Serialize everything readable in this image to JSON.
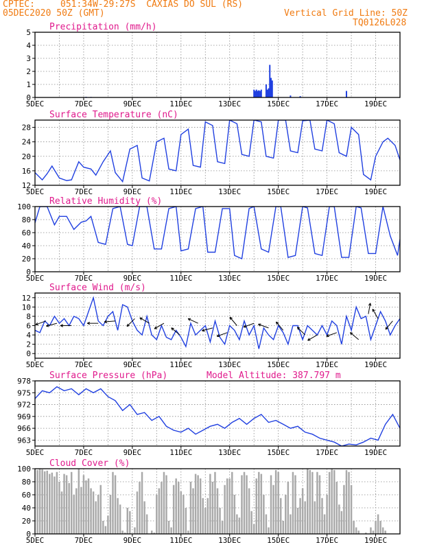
{
  "header": {
    "source": "CPTEC:",
    "location": "051:34W-29:27S  CAXIAS DO SUL (RS)",
    "run": "05DEC2020 50Z (GMT)",
    "grid_note": "Vertical Grid Line: 50Z",
    "model_id": "TQ0126L028"
  },
  "colors": {
    "header_text": "#f07a10",
    "panel_title": "#e0198c",
    "series_line": "#1f3fe0",
    "cloud_bars": "#a9a9a9",
    "wind_arrows": "#000000",
    "grid": "#888888"
  },
  "chart_data": [
    {
      "id": "precip",
      "type": "bar",
      "title": "Precipitation (mm/h)",
      "ylim": [
        0,
        5
      ],
      "yticks": [
        0,
        1,
        2,
        3,
        4,
        5
      ],
      "xticks": [
        "5DEC",
        "7DEC",
        "9DEC",
        "11DEC",
        "13DEC",
        "15DEC",
        "17DEC",
        "19DEC"
      ],
      "x_days": [
        0,
        15
      ],
      "points": [
        {
          "day": 2.1,
          "value": 0.05
        },
        {
          "day": 2.3,
          "value": 0.04
        },
        {
          "day": 4.2,
          "value": 0.03
        },
        {
          "day": 9.0,
          "value": 0.6
        },
        {
          "day": 9.05,
          "value": 0.5
        },
        {
          "day": 9.1,
          "value": 0.6
        },
        {
          "day": 9.15,
          "value": 0.5
        },
        {
          "day": 9.2,
          "value": 0.55
        },
        {
          "day": 9.25,
          "value": 0.5
        },
        {
          "day": 9.3,
          "value": 0.6
        },
        {
          "day": 9.5,
          "value": 1.0
        },
        {
          "day": 9.55,
          "value": 0.6
        },
        {
          "day": 9.6,
          "value": 0.7
        },
        {
          "day": 9.65,
          "value": 2.5
        },
        {
          "day": 9.7,
          "value": 1.5
        },
        {
          "day": 9.75,
          "value": 1.3
        },
        {
          "day": 10.5,
          "value": 0.15
        },
        {
          "day": 10.9,
          "value": 0.1
        },
        {
          "day": 12.8,
          "value": 0.5
        }
      ]
    },
    {
      "id": "temp",
      "type": "line",
      "title": "Surface Temperature (nC)",
      "ylim": [
        12,
        30
      ],
      "yticks": [
        12,
        16,
        20,
        24,
        28
      ],
      "xticks": [
        "5DEC",
        "7DEC",
        "9DEC",
        "11DEC",
        "13DEC",
        "15DEC",
        "17DEC",
        "19DEC"
      ],
      "x_days": [
        0,
        15
      ],
      "days": [
        0,
        0.3,
        0.5,
        0.7,
        1.0,
        1.3,
        1.5,
        1.8,
        2.0,
        2.3,
        2.5,
        2.8,
        3.1,
        3.3,
        3.6,
        3.9,
        4.2,
        4.4,
        4.7,
        5.0,
        5.3,
        5.5,
        5.8,
        6.0,
        6.3,
        6.5,
        6.8,
        7.0,
        7.3,
        7.5,
        7.8,
        8.0,
        8.3,
        8.5,
        8.8,
        9.0,
        9.3,
        9.5,
        9.8,
        10.0,
        10.3,
        10.5,
        10.8,
        11.0,
        11.3,
        11.5,
        11.8,
        12.0,
        12.3,
        12.5,
        12.8,
        13.0,
        13.3,
        13.5,
        13.8,
        14.0,
        14.3,
        14.5,
        14.8,
        15.0
      ],
      "values": [
        15.5,
        13.5,
        15.2,
        17.3,
        14.0,
        13.3,
        13.5,
        18.5,
        17.0,
        16.5,
        14.8,
        18.5,
        21.5,
        15.5,
        13.0,
        22.0,
        23.0,
        14.0,
        13.2,
        24.0,
        25.0,
        16.5,
        16.0,
        26.0,
        27.5,
        17.5,
        17.0,
        29.5,
        28.5,
        18.5,
        18.0,
        30.0,
        29.0,
        20.5,
        20.0,
        30.0,
        29.5,
        20.0,
        19.5,
        30.0,
        30.0,
        21.5,
        21.0,
        29.8,
        30.0,
        22.0,
        21.5,
        30.0,
        29.0,
        21.0,
        20.0,
        28.0,
        26.0,
        15.0,
        13.5,
        20.0,
        24.0,
        25.0,
        23.0,
        19.0
      ]
    },
    {
      "id": "rh",
      "type": "line",
      "title": "Relative Humidity (%)",
      "ylim": [
        0,
        100
      ],
      "yticks": [
        0,
        20,
        40,
        60,
        80,
        100
      ],
      "xticks": [
        "5DEC",
        "7DEC",
        "9DEC",
        "11DEC",
        "13DEC",
        "15DEC",
        "17DEC",
        "19DEC"
      ],
      "x_days": [
        0,
        15
      ],
      "days": [
        0,
        0.2,
        0.5,
        0.8,
        1.0,
        1.3,
        1.6,
        1.9,
        2.1,
        2.3,
        2.6,
        2.9,
        3.2,
        3.5,
        3.8,
        4.0,
        4.3,
        4.6,
        4.9,
        5.2,
        5.5,
        5.8,
        6.0,
        6.3,
        6.6,
        6.9,
        7.1,
        7.4,
        7.7,
        8.0,
        8.2,
        8.5,
        8.8,
        9.0,
        9.3,
        9.6,
        9.9,
        10.1,
        10.4,
        10.7,
        11.0,
        11.2,
        11.5,
        11.8,
        12.1,
        12.3,
        12.6,
        12.9,
        13.2,
        13.4,
        13.7,
        14.0,
        14.3,
        14.6,
        14.9,
        15.0
      ],
      "values": [
        75,
        100,
        100,
        72,
        85,
        85,
        65,
        76,
        78,
        85,
        45,
        42,
        97,
        100,
        42,
        40,
        100,
        100,
        35,
        35,
        97,
        100,
        32,
        35,
        97,
        100,
        30,
        30,
        97,
        97,
        25,
        20,
        97,
        100,
        35,
        30,
        100,
        100,
        22,
        25,
        100,
        98,
        28,
        25,
        100,
        100,
        22,
        22,
        100,
        98,
        28,
        28,
        100,
        55,
        25,
        50
      ]
    },
    {
      "id": "wind",
      "type": "line",
      "title": "Surface Wind (m/s)",
      "ylim": [
        -1,
        13
      ],
      "yticks": [
        0,
        2,
        4,
        6,
        8,
        10,
        12
      ],
      "xticks": [
        "5DEC",
        "7DEC",
        "9DEC",
        "11DEC",
        "13DEC",
        "15DEC",
        "17DEC",
        "19DEC"
      ],
      "x_days": [
        0,
        15
      ],
      "days": [
        0,
        0.2,
        0.4,
        0.6,
        0.8,
        1.0,
        1.2,
        1.4,
        1.6,
        1.8,
        2.0,
        2.2,
        2.4,
        2.6,
        2.8,
        3.0,
        3.2,
        3.4,
        3.6,
        3.8,
        4.0,
        4.2,
        4.4,
        4.6,
        4.8,
        5.0,
        5.2,
        5.4,
        5.6,
        5.8,
        6.0,
        6.2,
        6.4,
        6.6,
        6.8,
        7.0,
        7.2,
        7.4,
        7.6,
        7.8,
        8.0,
        8.2,
        8.4,
        8.6,
        8.8,
        9.0,
        9.2,
        9.4,
        9.6,
        9.8,
        10.0,
        10.2,
        10.4,
        10.6,
        10.8,
        11.0,
        11.2,
        11.4,
        11.6,
        11.8,
        12.0,
        12.2,
        12.4,
        12.6,
        12.8,
        13.0,
        13.2,
        13.4,
        13.6,
        13.8,
        14.0,
        14.2,
        14.4,
        14.6,
        14.8,
        15.0
      ],
      "values": [
        5,
        4.5,
        7,
        6,
        8,
        6.5,
        7.5,
        6,
        8,
        7.5,
        6,
        9,
        12,
        7,
        6,
        8,
        9,
        5,
        10.5,
        10,
        7,
        5,
        4,
        8,
        4,
        3,
        6,
        3.5,
        3,
        5,
        3.5,
        1.5,
        6.5,
        4,
        5,
        6,
        2.5,
        7,
        3.5,
        2,
        6,
        5,
        3,
        7,
        4,
        6,
        1,
        5.5,
        4,
        3,
        6,
        4.5,
        2,
        6,
        6,
        3,
        6,
        5,
        4,
        6,
        4,
        7,
        6,
        2,
        8,
        5,
        10,
        7.5,
        8,
        3,
        6,
        9,
        7,
        4,
        6,
        7.5
      ]
    },
    {
      "id": "pressure",
      "type": "line",
      "title": "Surface Pressure (hPa)",
      "annotation": "Model Altitude: 387.797 m",
      "ylim": [
        961.5,
        978
      ],
      "yticks": [
        963,
        966,
        969,
        972,
        975,
        978
      ],
      "xticks": [
        "5DEC",
        "7DEC",
        "9DEC",
        "11DEC",
        "13DEC",
        "15DEC",
        "17DEC",
        "19DEC"
      ],
      "x_days": [
        0,
        15
      ],
      "days": [
        0,
        0.3,
        0.6,
        0.9,
        1.2,
        1.5,
        1.8,
        2.1,
        2.4,
        2.7,
        3.0,
        3.3,
        3.6,
        3.9,
        4.2,
        4.5,
        4.8,
        5.1,
        5.4,
        5.7,
        6.0,
        6.3,
        6.6,
        6.9,
        7.2,
        7.5,
        7.8,
        8.1,
        8.4,
        8.7,
        9.0,
        9.3,
        9.6,
        9.9,
        10.2,
        10.5,
        10.8,
        11.1,
        11.4,
        11.7,
        12.0,
        12.3,
        12.6,
        12.9,
        13.2,
        13.5,
        13.8,
        14.1,
        14.4,
        14.7,
        15.0
      ],
      "values": [
        973.5,
        975.5,
        975.0,
        976.5,
        975.5,
        976.0,
        974.5,
        976.0,
        975.0,
        976.0,
        974.0,
        973.0,
        970.5,
        972.0,
        969.5,
        970.0,
        968.0,
        969.0,
        966.5,
        965.5,
        965.0,
        966.0,
        964.5,
        965.5,
        966.5,
        967.0,
        966.0,
        967.5,
        968.5,
        967.0,
        968.5,
        969.5,
        967.5,
        968.0,
        967.0,
        966.0,
        966.5,
        965.0,
        964.5,
        963.5,
        963.0,
        962.5,
        961.5,
        962.0,
        961.8,
        962.5,
        963.5,
        963.0,
        967.0,
        969.5,
        966.0
      ]
    },
    {
      "id": "cloud",
      "type": "bar",
      "title": "Cloud Cover (%)",
      "ylim": [
        0,
        100
      ],
      "yticks": [
        0,
        20,
        40,
        60,
        80,
        100
      ],
      "xticks": [
        "5DEC",
        "7DEC",
        "9DEC",
        "11DEC",
        "13DEC",
        "15DEC",
        "17DEC",
        "19DEC"
      ],
      "x_days": [
        0,
        15
      ],
      "bar_width_days": 0.07,
      "days": [
        0.1,
        0.2,
        0.3,
        0.4,
        0.5,
        0.6,
        0.7,
        0.8,
        0.9,
        1.0,
        1.1,
        1.2,
        1.3,
        1.4,
        1.5,
        1.6,
        1.7,
        1.8,
        1.9,
        2.0,
        2.1,
        2.2,
        2.3,
        2.4,
        2.5,
        2.6,
        2.7,
        2.8,
        2.9,
        3.0,
        3.1,
        3.2,
        3.3,
        3.4,
        3.5,
        3.6,
        3.7,
        3.8,
        3.9,
        4.0,
        4.1,
        4.2,
        4.3,
        4.4,
        4.5,
        4.6,
        4.7,
        4.8,
        4.9,
        5.0,
        5.1,
        5.2,
        5.3,
        5.4,
        5.5,
        5.6,
        5.7,
        5.8,
        5.9,
        6.0,
        6.1,
        6.2,
        6.3,
        6.4,
        6.5,
        6.6,
        6.7,
        6.8,
        6.9,
        7.0,
        7.1,
        7.2,
        7.3,
        7.4,
        7.5,
        7.6,
        7.7,
        7.8,
        7.9,
        8.0,
        8.1,
        8.2,
        8.3,
        8.4,
        8.5,
        8.6,
        8.7,
        8.8,
        8.9,
        9.0,
        9.1,
        9.2,
        9.3,
        9.4,
        9.5,
        9.6,
        9.7,
        9.8,
        9.9,
        10.0,
        10.1,
        10.2,
        10.3,
        10.4,
        10.5,
        10.6,
        10.7,
        10.8,
        10.9,
        11.0,
        11.1,
        11.2,
        11.3,
        11.4,
        11.5,
        11.6,
        11.7,
        11.8,
        11.9,
        12.0,
        12.1,
        12.2,
        12.3,
        12.4,
        12.5,
        12.6,
        12.7,
        12.8,
        12.9,
        13.0,
        13.1,
        13.2,
        13.3,
        13.4,
        13.5,
        13.6,
        13.7,
        13.8,
        13.9,
        14.0,
        14.1,
        14.2,
        14.3,
        14.4,
        14.5,
        14.6,
        14.7,
        14.8,
        14.9
      ],
      "values": [
        98,
        100,
        99,
        96,
        97,
        92,
        94,
        88,
        95,
        80,
        65,
        92,
        90,
        78,
        95,
        60,
        70,
        100,
        72,
        90,
        82,
        85,
        70,
        65,
        50,
        60,
        75,
        20,
        12,
        28,
        60,
        95,
        90,
        55,
        45,
        5,
        2,
        40,
        35,
        0,
        10,
        65,
        80,
        95,
        50,
        30,
        0,
        5,
        2,
        60,
        70,
        80,
        95,
        90,
        20,
        10,
        75,
        85,
        80,
        65,
        60,
        40,
        5,
        80,
        70,
        92,
        90,
        85,
        55,
        40,
        55,
        92,
        80,
        95,
        70,
        40,
        20,
        75,
        85,
        85,
        95,
        60,
        30,
        25,
        90,
        95,
        90,
        70,
        35,
        15,
        85,
        95,
        92,
        60,
        30,
        10,
        90,
        75,
        98,
        95,
        55,
        20,
        60,
        80,
        30,
        95,
        90,
        40,
        55,
        70,
        50,
        100,
        98,
        95,
        50,
        95,
        90,
        55,
        30,
        60,
        95,
        100,
        98,
        80,
        45,
        35,
        75,
        98,
        95,
        75,
        20,
        10,
        5,
        0,
        0,
        2,
        0,
        10,
        5,
        20,
        30,
        20,
        10,
        5,
        0,
        0,
        0,
        0,
        0
      ]
    }
  ],
  "wind_arrows": [
    {
      "day": 0.45,
      "speed": 7.0,
      "dir_deg": 200
    },
    {
      "day": 0.9,
      "speed": 6.5,
      "dir_deg": 195
    },
    {
      "day": 1.5,
      "speed": 6.0,
      "dir_deg": 180
    },
    {
      "day": 2.6,
      "speed": 6.5,
      "dir_deg": 180
    },
    {
      "day": 3.3,
      "speed": 7.0,
      "dir_deg": 185
    },
    {
      "day": 4.1,
      "speed": 7.5,
      "dir_deg": 225
    },
    {
      "day": 4.7,
      "speed": 6.5,
      "dir_deg": 150
    },
    {
      "day": 5.3,
      "speed": 6.5,
      "dir_deg": 210
    },
    {
      "day": 5.95,
      "speed": 4.0,
      "dir_deg": 140
    },
    {
      "day": 6.7,
      "speed": 6.5,
      "dir_deg": 155
    },
    {
      "day": 7.3,
      "speed": 5.5,
      "dir_deg": 195
    },
    {
      "day": 7.9,
      "speed": 4.5,
      "dir_deg": 200
    },
    {
      "day": 8.3,
      "speed": 6.0,
      "dir_deg": 130
    },
    {
      "day": 9.0,
      "speed": 6.5,
      "dir_deg": 200
    },
    {
      "day": 9.6,
      "speed": 5.5,
      "dir_deg": 160
    },
    {
      "day": 10.2,
      "speed": 5.0,
      "dir_deg": 130
    },
    {
      "day": 11.1,
      "speed": 4.0,
      "dir_deg": 135
    },
    {
      "day": 11.6,
      "speed": 4.0,
      "dir_deg": 210
    },
    {
      "day": 12.4,
      "speed": 4.5,
      "dir_deg": 200
    },
    {
      "day": 13.3,
      "speed": 3.0,
      "dir_deg": 140
    },
    {
      "day": 13.7,
      "speed": 8.5,
      "dir_deg": 80
    },
    {
      "day": 14.1,
      "speed": 7.5,
      "dir_deg": 120
    },
    {
      "day": 14.7,
      "speed": 7.0,
      "dir_deg": 230
    }
  ]
}
